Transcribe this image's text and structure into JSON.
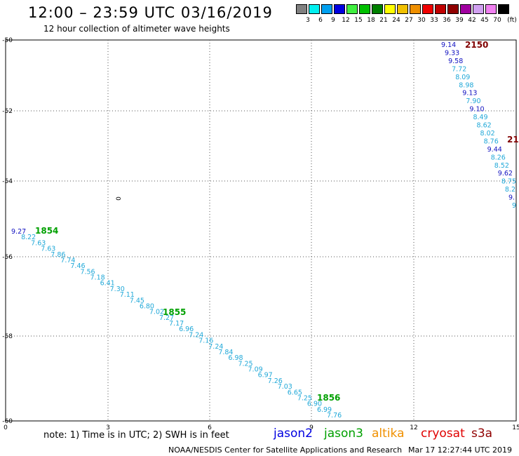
{
  "header": {
    "title": "12:00 – 23:59 UTC 03/16/2019",
    "subtitle": "12 hour collection of altimeter wave heights"
  },
  "scale": {
    "unit": "(ft)",
    "bins": [
      {
        "label": "3",
        "color": "#808080"
      },
      {
        "label": "6",
        "color": "#00f0f0"
      },
      {
        "label": "9",
        "color": "#00a0f0"
      },
      {
        "label": "12",
        "color": "#0000e0"
      },
      {
        "label": "15",
        "color": "#40f040"
      },
      {
        "label": "18",
        "color": "#00c000"
      },
      {
        "label": "21",
        "color": "#008000"
      },
      {
        "label": "24",
        "color": "#ffff00"
      },
      {
        "label": "27",
        "color": "#f0c000"
      },
      {
        "label": "30",
        "color": "#f09000"
      },
      {
        "label": "33",
        "color": "#f00000"
      },
      {
        "label": "36",
        "color": "#c00000"
      },
      {
        "label": "39",
        "color": "#900000"
      },
      {
        "label": "42",
        "color": "#a000a0"
      },
      {
        "label": "45",
        "color": "#d0a0f0"
      },
      {
        "label": "70",
        "color": "#f080f0"
      },
      {
        "label": "",
        "color": "#000000"
      }
    ]
  },
  "axes": {
    "x_ticks": [
      "0",
      "3",
      "6",
      "9",
      "12",
      "15"
    ],
    "y_ticks": [
      "-50",
      "-52",
      "-54",
      "-56",
      "-58",
      "-60"
    ],
    "contour_label": "0"
  },
  "tracks": {
    "left_track": {
      "labels": [
        {
          "t": "9.27",
          "c": "#1010c0"
        },
        {
          "t": "8.22",
          "c": "#20a8d8"
        },
        {
          "t": "7.63",
          "c": "#20a8d8"
        },
        {
          "t": "7.63",
          "c": "#20a8d8"
        },
        {
          "t": "7.86",
          "c": "#20a8d8"
        },
        {
          "t": "7.74",
          "c": "#20a8d8"
        },
        {
          "t": "7.46",
          "c": "#20a8d8"
        },
        {
          "t": "7.56",
          "c": "#20a8d8"
        },
        {
          "t": "7.18",
          "c": "#20a8d8"
        },
        {
          "t": "6.41",
          "c": "#20a8d8"
        },
        {
          "t": "7.30",
          "c": "#20a8d8"
        },
        {
          "t": "7.11",
          "c": "#20a8d8"
        },
        {
          "t": "7.45",
          "c": "#20a8d8"
        },
        {
          "t": "6.80",
          "c": "#20a8d8"
        },
        {
          "t": "7.02",
          "c": "#20a8d8"
        },
        {
          "t": "7.27",
          "c": "#20a8d8"
        },
        {
          "t": "7.17",
          "c": "#20a8d8"
        },
        {
          "t": "6.96",
          "c": "#20a8d8"
        },
        {
          "t": "7.24",
          "c": "#20a8d8"
        },
        {
          "t": "7.16",
          "c": "#20a8d8"
        },
        {
          "t": "7.24",
          "c": "#20a8d8"
        },
        {
          "t": "7.84",
          "c": "#20a8d8"
        },
        {
          "t": "6.98",
          "c": "#20a8d8"
        },
        {
          "t": "7.25",
          "c": "#20a8d8"
        },
        {
          "t": "7.09",
          "c": "#20a8d8"
        },
        {
          "t": "6.97",
          "c": "#20a8d8"
        },
        {
          "t": "7.26",
          "c": "#20a8d8"
        },
        {
          "t": "7.03",
          "c": "#20a8d8"
        },
        {
          "t": "6.65",
          "c": "#20a8d8"
        },
        {
          "t": "7.25",
          "c": "#20a8d8"
        },
        {
          "t": "6.90",
          "c": "#20a8d8"
        },
        {
          "t": "6.99",
          "c": "#20a8d8"
        },
        {
          "t": "7.76",
          "c": "#20a8d8"
        }
      ],
      "times": [
        "1854",
        "1855",
        "1856"
      ]
    },
    "right_track": {
      "labels": [
        {
          "t": "9.14",
          "c": "#1010c0"
        },
        {
          "t": "9.33",
          "c": "#1010c0"
        },
        {
          "t": "9.58",
          "c": "#1010c0"
        },
        {
          "t": "7.72",
          "c": "#20a8d8"
        },
        {
          "t": "8.09",
          "c": "#20a8d8"
        },
        {
          "t": "8.98",
          "c": "#20a8d8"
        },
        {
          "t": "9.13",
          "c": "#1010c0"
        },
        {
          "t": "7.90",
          "c": "#20a8d8"
        },
        {
          "t": "9.10",
          "c": "#1010c0"
        },
        {
          "t": "8.49",
          "c": "#20a8d8"
        },
        {
          "t": "8.62",
          "c": "#20a8d8"
        },
        {
          "t": "8.02",
          "c": "#20a8d8"
        },
        {
          "t": "8.76",
          "c": "#20a8d8"
        },
        {
          "t": "9.44",
          "c": "#1010c0"
        },
        {
          "t": "8.26",
          "c": "#20a8d8"
        },
        {
          "t": "8.52",
          "c": "#20a8d8"
        },
        {
          "t": "9.62",
          "c": "#1010c0"
        },
        {
          "t": "8.75",
          "c": "#20a8d8"
        },
        {
          "t": "8.2",
          "c": "#20a8d8"
        },
        {
          "t": "9.",
          "c": "#1010c0"
        },
        {
          "t": "9",
          "c": "#20a8d8"
        }
      ],
      "times": [
        "2150",
        "21"
      ]
    }
  },
  "legend": {
    "note": "note: 1) Time is in UTC; 2) SWH is in feet",
    "satellites": [
      {
        "name": "jason2",
        "color": "#0000e0"
      },
      {
        "name": "jason3",
        "color": "#00a000"
      },
      {
        "name": "altika",
        "color": "#f09000"
      },
      {
        "name": "cryosat",
        "color": "#e00000"
      },
      {
        "name": "s3a",
        "color": "#900000"
      }
    ]
  },
  "footer": {
    "credit": "NOAA/NESDIS Center for Satellite Applications and Research",
    "timestamp": "Mar 17 12:27:44 UTC 2019"
  }
}
